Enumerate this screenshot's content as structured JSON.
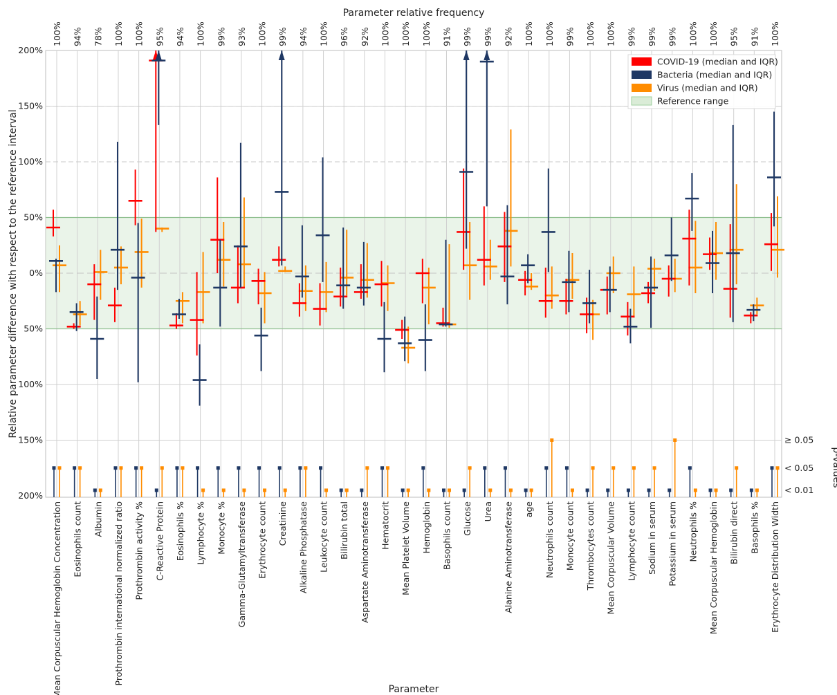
{
  "chart_data": {
    "type": "errorbar",
    "title": "Parameter relative frequency",
    "xlabel": "Parameter",
    "ylabel": "Relative parameter difference with respect to the reference interval",
    "ylabel_right": "p-values",
    "y_ticks": [
      "200%",
      "150%",
      "100%",
      "50%",
      "0%",
      "50%",
      "100%",
      "150%",
      "200%"
    ],
    "ylim": [
      -200,
      200
    ],
    "reference_range": [
      -50,
      50
    ],
    "grid": true,
    "legend_position": "top-right",
    "pvalue_levels": [
      "≥ 0.05",
      "< 0.05",
      "< 0.01"
    ],
    "colors": {
      "covid": "#ff0000",
      "bacteria": "#1f3864",
      "virus": "#ff8c00",
      "reference": "#d6ead3",
      "reference_line": "#8fbf8f"
    },
    "series": [
      {
        "key": "covid",
        "name": "COVID-19 (median and IQR)"
      },
      {
        "key": "bacteria",
        "name": "Bacteria (median and IQR)"
      },
      {
        "key": "virus",
        "name": "Virus (median and IQR)"
      },
      {
        "key": "reference",
        "name": "Reference range"
      }
    ],
    "parameters": [
      {
        "name": "Mean Corpuscular Hemoglobin Concentration",
        "freq": "100%",
        "covid": [
          41,
          33,
          57
        ],
        "bacteria": [
          11,
          -17,
          13
        ],
        "virus": [
          7,
          -17,
          25
        ],
        "p": [
          "<0.05",
          "<0.05",
          "<0.05"
        ]
      },
      {
        "name": "Eosinophils count",
        "freq": "94%",
        "covid": [
          -48,
          -50,
          -45
        ],
        "bacteria": [
          -35,
          -52,
          -27
        ],
        "virus": [
          -37,
          -47,
          -25
        ],
        "p": [
          "<0.05",
          "<0.05",
          "<0.05"
        ]
      },
      {
        "name": "Albumin",
        "freq": "78%",
        "covid": [
          -10,
          -42,
          8
        ],
        "bacteria": [
          -59,
          -95,
          -21
        ],
        "virus": [
          1,
          -24,
          21
        ],
        "p": [
          "<0.01",
          "<0.01",
          "<0.01"
        ]
      },
      {
        "name": "Prothrombin international normalized ratio",
        "freq": "100%",
        "covid": [
          -29,
          -44,
          -13
        ],
        "bacteria": [
          21,
          -15,
          118
        ],
        "virus": [
          5,
          -10,
          24
        ],
        "p": [
          "<0.05",
          "<0.05",
          "<0.05"
        ]
      },
      {
        "name": "Prothrombin activity %",
        "freq": "100%",
        "covid": [
          65,
          43,
          93
        ],
        "bacteria": [
          -4,
          -98,
          45
        ],
        "virus": [
          19,
          -13,
          49
        ],
        "p": [
          "<0.05",
          "<0.05",
          "<0.05"
        ]
      },
      {
        "name": "C-Reactive Protein",
        "freq": "95%",
        "covid": [
          191,
          37,
          200
        ],
        "bacteria": [
          191,
          133,
          200
        ],
        "virus": [
          40,
          37,
          41
        ],
        "p": [
          "<0.05",
          "<0.01",
          "<0.05"
        ]
      },
      {
        "name": "Eosinophils %",
        "freq": "94%",
        "covid": [
          -47,
          -50,
          -36
        ],
        "bacteria": [
          -37,
          -41,
          -23
        ],
        "virus": [
          -25,
          -45,
          -17
        ],
        "p": [
          "<0.05",
          "<0.05",
          "<0.05"
        ]
      },
      {
        "name": "Lymphocyte %",
        "freq": "100%",
        "covid": [
          -42,
          -74,
          1
        ],
        "bacteria": [
          -96,
          -119,
          -64
        ],
        "virus": [
          -17,
          -45,
          19
        ],
        "p": [
          "<0.05",
          "<0.05",
          "<0.01"
        ]
      },
      {
        "name": "Monocyte %",
        "freq": "99%",
        "covid": [
          30,
          0,
          86
        ],
        "bacteria": [
          -13,
          -48,
          30
        ],
        "virus": [
          12,
          -12,
          46
        ],
        "p": [
          "<0.05",
          "<0.05",
          "<0.01"
        ]
      },
      {
        "name": "Gamma-Glutamyltransferase",
        "freq": "93%",
        "covid": [
          -13,
          -27,
          25
        ],
        "bacteria": [
          24,
          -13,
          117
        ],
        "virus": [
          8,
          -13,
          68
        ],
        "p": [
          "<0.05",
          "<0.05",
          "<0.01"
        ]
      },
      {
        "name": "Erythrocyte count",
        "freq": "100%",
        "covid": [
          -7,
          -28,
          4
        ],
        "bacteria": [
          -56,
          -88,
          -31
        ],
        "virus": [
          -18,
          -45,
          1
        ],
        "p": [
          "<0.05",
          "<0.05",
          "<0.01"
        ]
      },
      {
        "name": "Creatinine",
        "freq": "99%",
        "covid": [
          12,
          6,
          24
        ],
        "bacteria": [
          73,
          7,
          200
        ],
        "virus": [
          2,
          1,
          6
        ],
        "p": [
          "<0.05",
          "<0.05",
          "<0.01"
        ]
      },
      {
        "name": "Alkaline Phosphatase",
        "freq": "94%",
        "covid": [
          -27,
          -39,
          -9
        ],
        "bacteria": [
          -3,
          -22,
          43
        ],
        "virus": [
          -16,
          -34,
          7
        ],
        "p": [
          "<0.05",
          "<0.05",
          "<0.05"
        ]
      },
      {
        "name": "Leukocyte count",
        "freq": "100%",
        "covid": [
          -32,
          -47,
          -9
        ],
        "bacteria": [
          34,
          -8,
          104
        ],
        "virus": [
          -17,
          -35,
          10
        ],
        "p": [
          "<0.05",
          "<0.05",
          "<0.01"
        ]
      },
      {
        "name": "Bilirubin total",
        "freq": "96%",
        "covid": [
          -21,
          -30,
          5
        ],
        "bacteria": [
          -11,
          -32,
          41
        ],
        "virus": [
          -4,
          -20,
          39
        ],
        "p": [
          "<0.01",
          "<0.01",
          "<0.01"
        ]
      },
      {
        "name": "Aspartate Aminotransferase",
        "freq": "92%",
        "covid": [
          -17,
          -23,
          8
        ],
        "bacteria": [
          -13,
          -29,
          28
        ],
        "virus": [
          -6,
          -22,
          27
        ],
        "p": [
          "<0.01",
          "<0.01",
          "<0.05"
        ]
      },
      {
        "name": "Hematocrit",
        "freq": "100%",
        "covid": [
          -10,
          -30,
          11
        ],
        "bacteria": [
          -59,
          -89,
          -26
        ],
        "virus": [
          -9,
          -34,
          7
        ],
        "p": [
          "<0.05",
          "<0.05",
          "<0.05"
        ]
      },
      {
        "name": "Mean Platelet Volume",
        "freq": "100%",
        "covid": [
          -51,
          -59,
          -42
        ],
        "bacteria": [
          -63,
          -79,
          -39
        ],
        "virus": [
          -67,
          -81,
          -48
        ],
        "p": [
          "<0.01",
          "<0.01",
          "<0.01"
        ]
      },
      {
        "name": "Hemoglobin",
        "freq": "100%",
        "covid": [
          0,
          -27,
          13
        ],
        "bacteria": [
          -60,
          -88,
          -28
        ],
        "virus": [
          -13,
          -46,
          5
        ],
        "p": [
          "<0.05",
          "<0.05",
          "<0.01"
        ]
      },
      {
        "name": "Basophils count",
        "freq": "91%",
        "covid": [
          -45,
          -48,
          -31
        ],
        "bacteria": [
          -46,
          -48,
          30
        ],
        "virus": [
          -46,
          -49,
          26
        ],
        "p": [
          "<0.01",
          "<0.01",
          "<0.01"
        ]
      },
      {
        "name": "Glucose",
        "freq": "99%",
        "covid": [
          37,
          3,
          94
        ],
        "bacteria": [
          91,
          22,
          200
        ],
        "virus": [
          7,
          -24,
          46
        ],
        "p": [
          "<0.05",
          "<0.01",
          "<0.05"
        ]
      },
      {
        "name": "Urea",
        "freq": "99%",
        "covid": [
          12,
          -11,
          60
        ],
        "bacteria": [
          190,
          60,
          200
        ],
        "virus": [
          6,
          -6,
          30
        ],
        "p": [
          "<0.05",
          "<0.05",
          "<0.01"
        ]
      },
      {
        "name": "Alanine Aminotransferase",
        "freq": "92%",
        "covid": [
          24,
          -8,
          55
        ],
        "bacteria": [
          -3,
          -28,
          61
        ],
        "virus": [
          38,
          6,
          129
        ],
        "p": [
          "<0.01",
          "<0.05",
          "<0.01"
        ]
      },
      {
        "name": "age",
        "freq": "100%",
        "covid": [
          -6,
          -20,
          2
        ],
        "bacteria": [
          7,
          -9,
          17
        ],
        "virus": [
          -12,
          -15,
          0
        ],
        "p": [
          "<0.01",
          "<0.01",
          "<0.01"
        ]
      },
      {
        "name": "Neutrophils count",
        "freq": "100%",
        "covid": [
          -25,
          -40,
          5
        ],
        "bacteria": [
          37,
          1,
          94
        ],
        "virus": [
          -20,
          -32,
          6
        ],
        "p": [
          "<0.05",
          "<0.05",
          "≥0.05"
        ]
      },
      {
        "name": "Monocyte count",
        "freq": "99%",
        "covid": [
          -25,
          -37,
          -5
        ],
        "bacteria": [
          -8,
          -35,
          20
        ],
        "virus": [
          -6,
          -23,
          18
        ],
        "p": [
          "<0.05",
          "<0.05",
          "<0.01"
        ]
      },
      {
        "name": "Thrombocytes count",
        "freq": "100%",
        "covid": [
          -37,
          -54,
          -22
        ],
        "bacteria": [
          -27,
          -45,
          3
        ],
        "virus": [
          -37,
          -60,
          -24
        ],
        "p": [
          "<0.01",
          "<0.01",
          "<0.05"
        ]
      },
      {
        "name": "Mean Corpuscular Volume",
        "freq": "100%",
        "covid": [
          -15,
          -37,
          -3
        ],
        "bacteria": [
          -15,
          -35,
          6
        ],
        "virus": [
          0,
          -18,
          15
        ],
        "p": [
          "<0.01",
          "<0.01",
          "<0.05"
        ]
      },
      {
        "name": "Lymphocyte count",
        "freq": "99%",
        "covid": [
          -39,
          -56,
          -26
        ],
        "bacteria": [
          -48,
          -63,
          -32
        ],
        "virus": [
          -19,
          -40,
          6
        ],
        "p": [
          "<0.01",
          "<0.01",
          "<0.05"
        ]
      },
      {
        "name": "Sodium in serum",
        "freq": "99%",
        "covid": [
          -18,
          -27,
          -8
        ],
        "bacteria": [
          -13,
          -49,
          15
        ],
        "virus": [
          4,
          -16,
          13
        ],
        "p": [
          "<0.01",
          "<0.01",
          "<0.05"
        ]
      },
      {
        "name": "Potassium in serum",
        "freq": "99%",
        "covid": [
          -5,
          -21,
          7
        ],
        "bacteria": [
          16,
          -7,
          50
        ],
        "virus": [
          -5,
          -17,
          13
        ],
        "p": [
          "<0.01",
          "<0.01",
          "≥0.05"
        ]
      },
      {
        "name": "Neutrophils %",
        "freq": "100%",
        "covid": [
          31,
          -11,
          57
        ],
        "bacteria": [
          67,
          38,
          90
        ],
        "virus": [
          5,
          -18,
          47
        ],
        "p": [
          "<0.05",
          "<0.05",
          "<0.01"
        ]
      },
      {
        "name": "Mean Corpuscular Hemoglobin",
        "freq": "100%",
        "covid": [
          17,
          3,
          32
        ],
        "bacteria": [
          9,
          -18,
          38
        ],
        "virus": [
          18,
          -6,
          46
        ],
        "p": [
          "<0.01",
          "<0.01",
          "<0.01"
        ]
      },
      {
        "name": "Bilirubin direct",
        "freq": "95%",
        "covid": [
          -14,
          -40,
          44
        ],
        "bacteria": [
          18,
          -44,
          133
        ],
        "virus": [
          21,
          -10,
          80
        ],
        "p": [
          "<0.01",
          "<0.01",
          "<0.05"
        ]
      },
      {
        "name": "Basophils %",
        "freq": "91%",
        "covid": [
          -38,
          -45,
          -35
        ],
        "bacteria": [
          -33,
          -43,
          -28
        ],
        "virus": [
          -29,
          -37,
          -22
        ],
        "p": [
          "<0.01",
          "<0.01",
          "<0.01"
        ]
      },
      {
        "name": "Erythrocyte Distribution Width",
        "freq": "100%",
        "covid": [
          26,
          2,
          54
        ],
        "bacteria": [
          86,
          42,
          145
        ],
        "virus": [
          21,
          -4,
          69
        ],
        "p": [
          "<0.05",
          "<0.05",
          "<0.05"
        ]
      }
    ]
  }
}
